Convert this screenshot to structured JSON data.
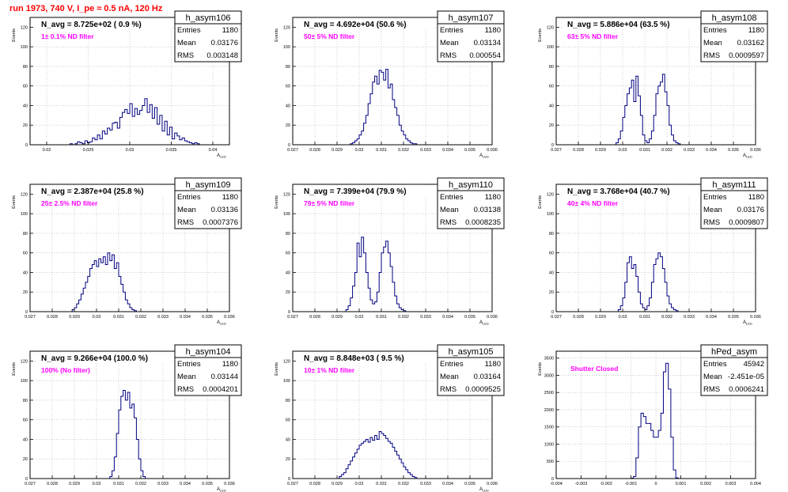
{
  "page": {
    "title": "run 1973,   740 V, I_pe ≈ 0.5 nA, 120 Hz",
    "colors": {
      "title": "#ff0000",
      "histogram": "#000080",
      "annotation": "#ff00ff",
      "frame": "#000000"
    }
  },
  "chart_data": [
    {
      "type": "histogram",
      "name": "h_asym106",
      "stats": {
        "entries": "1180",
        "mean": "0.03176",
        "rms": "0.003148"
      },
      "navg": "N_avg = 8.725e+02 ( 0.9 %)",
      "note": "1± 0.1% ND filter",
      "xlabel": "A_LED",
      "ylabel": "Events",
      "xlim": [
        0.018,
        0.042
      ],
      "ylim": [
        0,
        130
      ],
      "xticks": [
        0.02,
        0.025,
        0.03,
        0.035,
        0.04
      ],
      "xtick_labels": [
        "0.02",
        "0.025",
        "0.03",
        "0.035",
        "0.04"
      ],
      "yticks": [
        0,
        20,
        40,
        60,
        80,
        100,
        120
      ],
      "ytick_labels": [
        "0",
        "20",
        "40",
        "60",
        "80",
        "100",
        "120"
      ],
      "bin_start": 0.018,
      "bin_width": 0.0003,
      "values": [
        0,
        0,
        0,
        0,
        0,
        0,
        0,
        0,
        0,
        0,
        0,
        0,
        0,
        0,
        0,
        0,
        1,
        0,
        1,
        3,
        2,
        1,
        4,
        2,
        3,
        7,
        5,
        10,
        6,
        14,
        11,
        17,
        15,
        22,
        23,
        17,
        28,
        33,
        36,
        32,
        42,
        29,
        37,
        31,
        35,
        40,
        47,
        33,
        41,
        27,
        38,
        21,
        30,
        14,
        24,
        10,
        18,
        6,
        12,
        9,
        5,
        7,
        4,
        3,
        2,
        1,
        2,
        1,
        0,
        0,
        0,
        0,
        0,
        0,
        0,
        0,
        0,
        0,
        0,
        0
      ],
      "box_mode": "plain"
    },
    {
      "type": "histogram",
      "name": "h_asym107",
      "stats": {
        "entries": "1180",
        "mean": "0.03134",
        "rms": "0.000554"
      },
      "navg": "N_avg = 4.692e+04 (50.6 %)",
      "note": "50± 5% ND filter",
      "xlabel": "A_LED",
      "ylabel": "Events",
      "xlim": [
        0.027,
        0.036
      ],
      "ylim": [
        0,
        130
      ],
      "xticks": [
        0.027,
        0.028,
        0.029,
        0.03,
        0.031,
        0.032,
        0.033,
        0.034,
        0.035,
        0.036
      ],
      "xtick_labels": [
        "0.027",
        "0.028",
        "0.029",
        "0.03",
        "0.031",
        "0.032",
        "0.033",
        "0.034",
        "0.035",
        "0.036"
      ],
      "yticks": [
        0,
        20,
        40,
        60,
        80,
        100,
        120
      ],
      "ytick_labels": [
        "0",
        "20",
        "40",
        "60",
        "80",
        "100",
        "120"
      ],
      "bin_start": 0.027,
      "bin_width": 0.0001,
      "values": [
        0,
        0,
        0,
        0,
        0,
        0,
        0,
        0,
        0,
        0,
        0,
        0,
        0,
        0,
        0,
        0,
        0,
        0,
        0,
        0,
        0,
        0,
        0,
        0,
        0,
        0,
        1,
        2,
        4,
        6,
        10,
        14,
        22,
        30,
        42,
        52,
        64,
        70,
        62,
        76,
        74,
        66,
        77,
        58,
        62,
        46,
        38,
        30,
        20,
        14,
        10,
        6,
        4,
        2,
        1,
        1,
        0,
        0,
        0,
        0,
        0,
        0,
        0,
        0,
        0,
        0,
        0,
        0,
        0,
        0,
        0,
        0,
        0,
        0,
        0,
        0,
        0,
        0,
        0,
        0,
        0,
        0,
        0,
        0,
        0,
        0,
        0,
        0,
        0,
        0
      ],
      "box_mode": "plain"
    },
    {
      "type": "histogram",
      "name": "h_asym108",
      "stats": {
        "entries": "1180",
        "mean": "0.03162",
        "rms": "0.0009597"
      },
      "navg": "N_avg = 5.886e+04 (63.5 %)",
      "note": "63± 5% ND filter",
      "xlabel": "A_LED",
      "ylabel": "Events",
      "xlim": [
        0.027,
        0.036
      ],
      "ylim": [
        0,
        130
      ],
      "xticks": [
        0.027,
        0.028,
        0.029,
        0.03,
        0.031,
        0.032,
        0.033,
        0.034,
        0.035,
        0.036
      ],
      "xtick_labels": [
        "0.027",
        "0.028",
        "0.029",
        "0.03",
        "0.031",
        "0.032",
        "0.033",
        "0.034",
        "0.035",
        "0.036"
      ],
      "yticks": [
        0,
        20,
        40,
        60,
        80,
        100,
        120
      ],
      "ytick_labels": [
        "0",
        "20",
        "40",
        "60",
        "80",
        "100",
        "120"
      ],
      "bin_start": 0.027,
      "bin_width": 0.0001,
      "values": [
        0,
        0,
        0,
        0,
        0,
        0,
        0,
        0,
        0,
        0,
        0,
        0,
        0,
        0,
        0,
        0,
        0,
        0,
        0,
        0,
        0,
        0,
        0,
        0,
        0,
        0,
        0,
        2,
        6,
        14,
        28,
        40,
        52,
        58,
        66,
        44,
        70,
        50,
        30,
        10,
        4,
        2,
        6,
        14,
        30,
        52,
        60,
        64,
        72,
        54,
        40,
        20,
        10,
        4,
        2,
        1,
        0,
        0,
        0,
        0,
        0,
        0,
        0,
        0,
        0,
        0,
        0,
        0,
        0,
        0,
        0,
        0,
        0,
        0,
        0,
        0,
        0,
        0,
        0,
        0,
        0,
        0,
        0,
        0,
        0,
        0,
        0,
        0,
        0,
        0
      ],
      "box_mode": "plain"
    },
    {
      "type": "histogram",
      "name": "h_asym109",
      "stats": {
        "entries": "1180",
        "mean": "0.03136",
        "rms": "0.0007376"
      },
      "navg": "N_avg = 2.387e+04 (25.8 %)",
      "note": "25± 2.5% ND filter",
      "xlabel": "A_LED",
      "ylabel": "Events",
      "xlim": [
        0.027,
        0.036
      ],
      "ylim": [
        0,
        130
      ],
      "xticks": [
        0.027,
        0.028,
        0.029,
        0.03,
        0.031,
        0.032,
        0.033,
        0.034,
        0.035,
        0.036
      ],
      "xtick_labels": [
        "0.027",
        "0.028",
        "0.029",
        "0.03",
        "0.031",
        "0.032",
        "0.033",
        "0.034",
        "0.035",
        "0.036"
      ],
      "yticks": [
        0,
        20,
        40,
        60,
        80,
        100,
        120
      ],
      "ytick_labels": [
        "0",
        "20",
        "40",
        "60",
        "80",
        "100",
        "120"
      ],
      "bin_start": 0.027,
      "bin_width": 0.0001,
      "values": [
        0,
        0,
        0,
        0,
        0,
        0,
        0,
        0,
        0,
        0,
        0,
        0,
        0,
        0,
        0,
        0,
        0,
        0,
        0,
        2,
        4,
        8,
        12,
        18,
        24,
        30,
        36,
        44,
        48,
        52,
        46,
        54,
        50,
        56,
        48,
        60,
        52,
        58,
        44,
        50,
        36,
        28,
        20,
        12,
        8,
        4,
        2,
        1,
        0,
        0,
        0,
        0,
        0,
        0,
        0,
        0,
        0,
        0,
        0,
        0,
        0,
        0,
        0,
        0,
        0,
        0,
        0,
        0,
        0,
        0,
        0,
        0,
        0,
        0,
        0,
        0,
        0,
        0,
        0,
        0,
        0,
        0,
        0,
        0,
        0,
        0,
        0,
        0,
        0,
        0
      ],
      "box_mode": "plain"
    },
    {
      "type": "histogram",
      "name": "h_asym110",
      "stats": {
        "entries": "1180",
        "mean": "0.03138",
        "rms": "0.0008235"
      },
      "navg": "N_avg = 7.399e+04 (79.9 %)",
      "note": "79± 5% ND filter",
      "xlabel": "A_LED",
      "ylabel": "Events",
      "xlim": [
        0.027,
        0.036
      ],
      "ylim": [
        0,
        130
      ],
      "xticks": [
        0.027,
        0.028,
        0.029,
        0.03,
        0.031,
        0.032,
        0.033,
        0.034,
        0.035,
        0.036
      ],
      "xtick_labels": [
        "0.027",
        "0.028",
        "0.029",
        "0.03",
        "0.031",
        "0.032",
        "0.033",
        "0.034",
        "0.035",
        "0.036"
      ],
      "yticks": [
        0,
        20,
        40,
        60,
        80,
        100,
        120
      ],
      "ytick_labels": [
        "0",
        "20",
        "40",
        "60",
        "80",
        "100",
        "120"
      ],
      "bin_start": 0.027,
      "bin_width": 0.0001,
      "values": [
        0,
        0,
        0,
        0,
        0,
        0,
        0,
        0,
        0,
        0,
        0,
        0,
        0,
        0,
        0,
        0,
        0,
        0,
        0,
        0,
        0,
        0,
        0,
        0,
        2,
        6,
        14,
        26,
        40,
        70,
        56,
        76,
        60,
        40,
        24,
        12,
        8,
        10,
        20,
        40,
        60,
        66,
        72,
        60,
        46,
        30,
        16,
        8,
        4,
        2,
        1,
        0,
        0,
        0,
        0,
        0,
        0,
        0,
        0,
        0,
        0,
        0,
        0,
        0,
        0,
        0,
        0,
        0,
        0,
        0,
        0,
        0,
        0,
        0,
        0,
        0,
        0,
        0,
        0,
        0,
        0,
        0,
        0,
        0,
        0,
        0,
        0,
        0,
        0,
        0
      ],
      "box_mode": "plain"
    },
    {
      "type": "histogram",
      "name": "h_asym111",
      "stats": {
        "entries": "1180",
        "mean": "0.03176",
        "rms": "0.0009807"
      },
      "navg": "N_avg = 3.768e+04 (40.7 %)",
      "note": "40± 4% ND filter",
      "xlabel": "A_LED",
      "ylabel": "Events",
      "xlim": [
        0.027,
        0.036
      ],
      "ylim": [
        0,
        130
      ],
      "xticks": [
        0.027,
        0.028,
        0.029,
        0.03,
        0.031,
        0.032,
        0.033,
        0.034,
        0.035,
        0.036
      ],
      "xtick_labels": [
        "0.027",
        "0.028",
        "0.029",
        "0.03",
        "0.031",
        "0.032",
        "0.033",
        "0.034",
        "0.035",
        "0.036"
      ],
      "yticks": [
        0,
        20,
        40,
        60,
        80,
        100,
        120
      ],
      "ytick_labels": [
        "0",
        "20",
        "40",
        "60",
        "80",
        "100",
        "120"
      ],
      "bin_start": 0.027,
      "bin_width": 0.0001,
      "values": [
        0,
        0,
        0,
        0,
        0,
        0,
        0,
        0,
        0,
        0,
        0,
        0,
        0,
        0,
        0,
        0,
        0,
        0,
        0,
        0,
        0,
        0,
        0,
        0,
        0,
        0,
        0,
        0,
        2,
        6,
        14,
        30,
        50,
        56,
        44,
        48,
        36,
        20,
        8,
        4,
        2,
        6,
        14,
        30,
        48,
        54,
        60,
        56,
        44,
        30,
        16,
        8,
        4,
        2,
        1,
        0,
        0,
        0,
        0,
        0,
        0,
        0,
        0,
        0,
        0,
        0,
        0,
        0,
        0,
        0,
        0,
        0,
        0,
        0,
        0,
        0,
        0,
        0,
        0,
        0,
        0,
        0,
        0,
        0,
        0,
        0,
        0,
        0,
        0,
        0
      ],
      "box_mode": "plain"
    },
    {
      "type": "histogram",
      "name": "h_asym104",
      "stats": {
        "entries": "1180",
        "mean": "0.03144",
        "rms": "0.0004201"
      },
      "navg": "N_avg = 9.266e+04 (100.0 %)",
      "note": "100% (No filter)",
      "xlabel": "A_LED",
      "ylabel": "Events",
      "xlim": [
        0.027,
        0.036
      ],
      "ylim": [
        0,
        130
      ],
      "xticks": [
        0.027,
        0.028,
        0.029,
        0.03,
        0.031,
        0.032,
        0.033,
        0.034,
        0.035,
        0.036
      ],
      "xtick_labels": [
        "0.027",
        "0.028",
        "0.029",
        "0.03",
        "0.031",
        "0.032",
        "0.033",
        "0.034",
        "0.035",
        "0.036"
      ],
      "yticks": [
        0,
        20,
        40,
        60,
        80,
        100,
        120
      ],
      "ytick_labels": [
        "0",
        "20",
        "40",
        "60",
        "80",
        "100",
        "120"
      ],
      "bin_start": 0.027,
      "bin_width": 0.0001,
      "values": [
        0,
        0,
        0,
        0,
        0,
        0,
        0,
        0,
        0,
        0,
        0,
        0,
        0,
        0,
        0,
        0,
        0,
        0,
        0,
        0,
        0,
        0,
        0,
        0,
        0,
        0,
        0,
        0,
        0,
        0,
        0,
        0,
        0,
        0,
        0,
        0,
        2,
        8,
        22,
        46,
        70,
        84,
        90,
        80,
        88,
        72,
        76,
        62,
        40,
        20,
        8,
        2,
        0,
        0,
        0,
        0,
        0,
        0,
        0,
        0,
        0,
        0,
        0,
        0,
        0,
        0,
        0,
        0,
        0,
        0,
        0,
        0,
        0,
        0,
        0,
        0,
        0,
        0,
        0,
        0,
        0,
        0,
        0,
        0,
        0,
        0,
        0,
        0,
        0,
        0
      ],
      "box_mode": "plain"
    },
    {
      "type": "histogram",
      "name": "h_asym105",
      "stats": {
        "entries": "1180",
        "mean": "0.03164",
        "rms": "0.0009525"
      },
      "navg": "N_avg = 8.848e+03 ( 9.5 %)",
      "note": "10± 1% ND filter",
      "xlabel": "A_LED",
      "ylabel": "Events",
      "xlim": [
        0.027,
        0.036
      ],
      "ylim": [
        0,
        130
      ],
      "xticks": [
        0.027,
        0.028,
        0.029,
        0.03,
        0.031,
        0.032,
        0.033,
        0.034,
        0.035,
        0.036
      ],
      "xtick_labels": [
        "0.027",
        "0.028",
        "0.029",
        "0.03",
        "0.031",
        "0.032",
        "0.033",
        "0.034",
        "0.035",
        "0.036"
      ],
      "yticks": [
        0,
        20,
        40,
        60,
        80,
        100,
        120
      ],
      "ytick_labels": [
        "0",
        "20",
        "40",
        "60",
        "80",
        "100",
        "120"
      ],
      "bin_start": 0.027,
      "bin_width": 0.0001,
      "values": [
        0,
        0,
        0,
        0,
        0,
        0,
        0,
        0,
        0,
        0,
        0,
        0,
        0,
        0,
        0,
        0,
        0,
        0,
        0,
        0,
        0,
        2,
        4,
        6,
        10,
        14,
        18,
        22,
        26,
        30,
        34,
        36,
        38,
        40,
        37,
        42,
        39,
        44,
        40,
        48,
        46,
        44,
        41,
        38,
        36,
        32,
        28,
        24,
        20,
        16,
        12,
        9,
        6,
        4,
        2,
        1,
        0,
        0,
        0,
        0,
        0,
        0,
        0,
        0,
        0,
        0,
        0,
        0,
        0,
        0,
        0,
        0,
        0,
        0,
        0,
        0,
        0,
        0,
        0,
        0,
        0,
        0,
        0,
        0,
        0,
        0,
        0,
        0,
        0,
        0
      ],
      "box_mode": "plain"
    },
    {
      "type": "histogram",
      "name": "hPed_asym",
      "stats": {
        "entries": "45942",
        "mean": "-2.451e-05",
        "rms": "0.0006241"
      },
      "navg": "",
      "note": "Shutter Closed",
      "xlabel": "",
      "ylabel": "Events",
      "xlim": [
        -0.004,
        0.004
      ],
      "ylim": [
        0,
        3700
      ],
      "xticks": [
        -0.004,
        -0.003,
        -0.002,
        -0.001,
        0,
        0.001,
        0.002,
        0.003,
        0.004
      ],
      "xtick_labels": [
        "-0.004",
        "-0.003",
        "-0.002",
        "-0.001",
        "0",
        "0.001",
        "0.002",
        "0.003",
        "0.004"
      ],
      "yticks": [
        0,
        500,
        1000,
        1500,
        2000,
        2500,
        3000,
        3500
      ],
      "ytick_labels": [
        "0",
        "500",
        "1000",
        "1500",
        "2000",
        "2500",
        "3000",
        "3500"
      ],
      "bin_start": -0.004,
      "bin_width": 0.0001,
      "values": [
        0,
        0,
        0,
        0,
        0,
        0,
        0,
        0,
        0,
        0,
        0,
        0,
        0,
        0,
        0,
        0,
        0,
        0,
        0,
        0,
        0,
        0,
        0,
        0,
        0,
        0,
        0,
        0,
        0,
        0,
        10,
        60,
        600,
        1500,
        1900,
        1800,
        1600,
        1600,
        1400,
        1200,
        1200,
        1400,
        1900,
        3100,
        3350,
        2600,
        1200,
        250,
        20,
        0,
        0,
        0,
        0,
        0,
        0,
        0,
        0,
        0,
        0,
        0,
        0,
        0,
        0,
        0,
        0,
        0,
        0,
        0,
        0,
        0,
        0,
        0,
        0,
        0,
        0,
        0,
        0,
        0,
        0,
        0
      ],
      "box_mode": "box"
    }
  ]
}
